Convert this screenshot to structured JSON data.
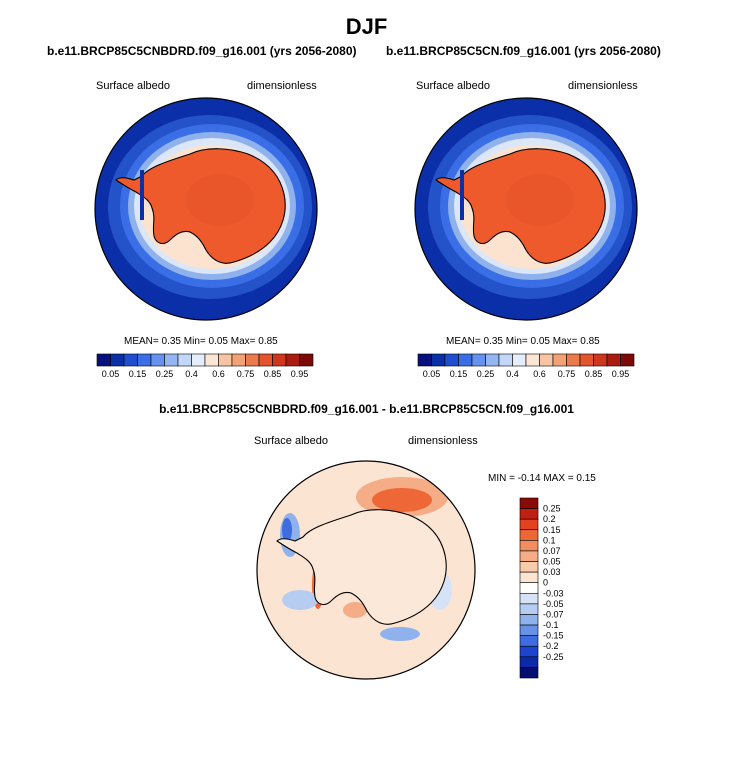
{
  "chart_data": [
    {
      "type": "heatmap",
      "projection": "polar stereographic (south)",
      "title": "b.e11.BRCP85C5CNBDRD.f09_g16.001 (yrs 2056-2080)",
      "left_label": "Surface albedo",
      "right_label": "dimensionless",
      "stats": {
        "mean_label": "MEAN=",
        "mean": "0.35",
        "min_label": "Min=",
        "min": "0.05",
        "max_label": "Max=",
        "max": "0.85"
      },
      "colorbar": {
        "orientation": "horizontal",
        "ticks": [
          "0.05",
          "0.15",
          "0.25",
          "0.4",
          "0.6",
          "0.75",
          "0.85",
          "0.95"
        ],
        "colors": [
          "#08107e",
          "#0a2fa6",
          "#1f4fd0",
          "#3a6ee6",
          "#6592ee",
          "#94b6f3",
          "#c2d7f8",
          "#e5eefb",
          "#fbe6d6",
          "#f7c5a4",
          "#f2a273",
          "#eb7b4c",
          "#e3552d",
          "#d0361e",
          "#aa1c12",
          "#7e0a08"
        ]
      }
    },
    {
      "type": "heatmap",
      "projection": "polar stereographic (south)",
      "title": "b.e11.BRCP85C5CN.f09_g16.001 (yrs 2056-2080)",
      "left_label": "Surface albedo",
      "right_label": "dimensionless",
      "stats": {
        "mean_label": "MEAN=",
        "mean": "0.35",
        "min_label": "Min=",
        "min": "0.05",
        "max_label": "Max=",
        "max": "0.85"
      },
      "colorbar": {
        "orientation": "horizontal",
        "ticks": [
          "0.05",
          "0.15",
          "0.25",
          "0.4",
          "0.6",
          "0.75",
          "0.85",
          "0.95"
        ],
        "colors": [
          "#08107e",
          "#0a2fa6",
          "#1f4fd0",
          "#3a6ee6",
          "#6592ee",
          "#94b6f3",
          "#c2d7f8",
          "#e5eefb",
          "#fbe6d6",
          "#f7c5a4",
          "#f2a273",
          "#eb7b4c",
          "#e3552d",
          "#d0361e",
          "#aa1c12",
          "#7e0a08"
        ]
      }
    },
    {
      "type": "heatmap",
      "projection": "polar stereographic (south)",
      "title": "b.e11.BRCP85C5CNBDRD.f09_g16.001 - b.e11.BRCP85C5CN.f09_g16.001",
      "left_label": "Surface albedo",
      "right_label": "dimensionless",
      "stats": {
        "min_label": "MIN =",
        "min": "-0.14",
        "max_label": "MAX =",
        "max": "0.15"
      },
      "colorbar": {
        "orientation": "vertical",
        "ticks": [
          "0.25",
          "0.2",
          "0.15",
          "0.1",
          "0.07",
          "0.05",
          "0.03",
          "0",
          "-0.03",
          "-0.05",
          "-0.07",
          "-0.1",
          "-0.15",
          "-0.2",
          "-0.25"
        ],
        "colors": [
          "#8a0a08",
          "#c0200f",
          "#e3421f",
          "#ee6737",
          "#f18d5e",
          "#f4ad86",
          "#f8cbab",
          "#fbe5d2",
          "#ffffff",
          "#d6e3f6",
          "#b6cdf1",
          "#8fb1ec",
          "#6992e6",
          "#3f6de0",
          "#1b45cf",
          "#0c2aa8",
          "#050d70"
        ]
      }
    }
  ],
  "page_title": "DJF"
}
